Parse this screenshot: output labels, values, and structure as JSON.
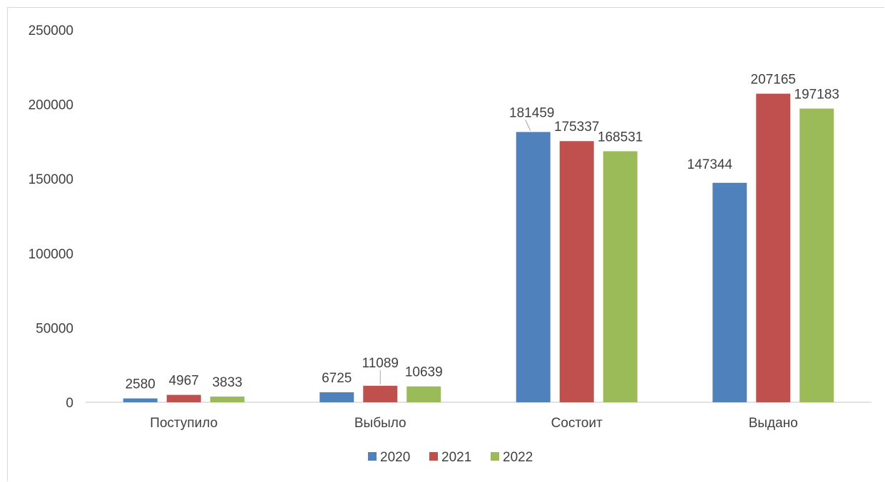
{
  "chart_data": {
    "type": "bar",
    "categories": [
      "Поступило",
      "Выбыло",
      "Состоит",
      "Выдано"
    ],
    "series": [
      {
        "name": "2020",
        "color": "#4f81bd",
        "values": [
          2580,
          6725,
          181459,
          147344
        ]
      },
      {
        "name": "2021",
        "color": "#c0504d",
        "values": [
          4967,
          11089,
          175337,
          207165
        ]
      },
      {
        "name": "2022",
        "color": "#9bbb59",
        "values": [
          3833,
          10639,
          168531,
          197183
        ]
      }
    ],
    "ylim": [
      0,
      250000
    ],
    "yticks": [
      "0",
      "50000",
      "100000",
      "150000",
      "200000",
      "250000"
    ],
    "grid": false,
    "legend": "bottom"
  }
}
